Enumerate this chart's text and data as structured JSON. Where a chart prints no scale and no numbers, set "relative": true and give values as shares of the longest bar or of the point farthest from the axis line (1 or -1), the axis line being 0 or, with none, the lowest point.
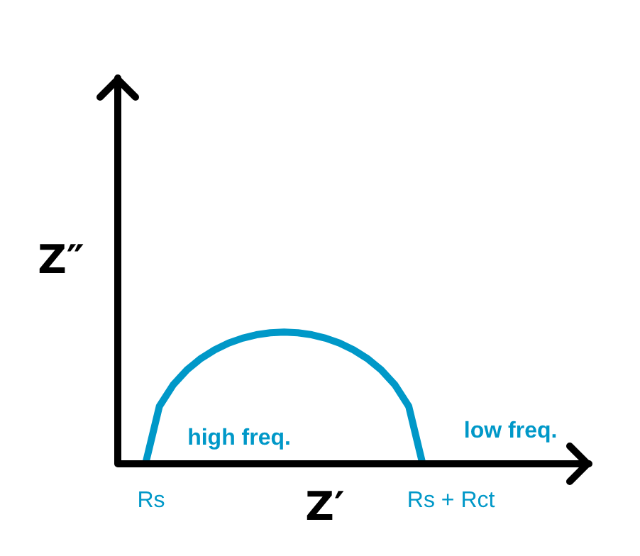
{
  "chart_data": {
    "type": "line",
    "relative": true,
    "xlabel": "Z′",
    "ylabel": "Z″",
    "categories": [
      null,
      null,
      null,
      null,
      null,
      null,
      null,
      null,
      null,
      null,
      null,
      null,
      null,
      null,
      null,
      null,
      null,
      null,
      null,
      null,
      null,
      null,
      null,
      null,
      null,
      null,
      null,
      null,
      null,
      null,
      null,
      null,
      null,
      null,
      null
    ],
    "series": [
      {
        "color": "#0098c8",
        "values": [
          null,
          null,
          0,
          0.436,
          0.6,
          0.714,
          0.8,
          0.866,
          0.917,
          0.954,
          0.98,
          0.995,
          1,
          0.995,
          0.98,
          0.954,
          0.917,
          0.866,
          0.8,
          0.714,
          0.6,
          0.436,
          0,
          null,
          null,
          null,
          null,
          null,
          null,
          null,
          null,
          null,
          null,
          null,
          null
        ]
      }
    ],
    "annotations": [
      "Rs",
      "Rs + Rct",
      "high freq.",
      "low freq."
    ],
    "marker": "none",
    "line_style": "solid"
  }
}
